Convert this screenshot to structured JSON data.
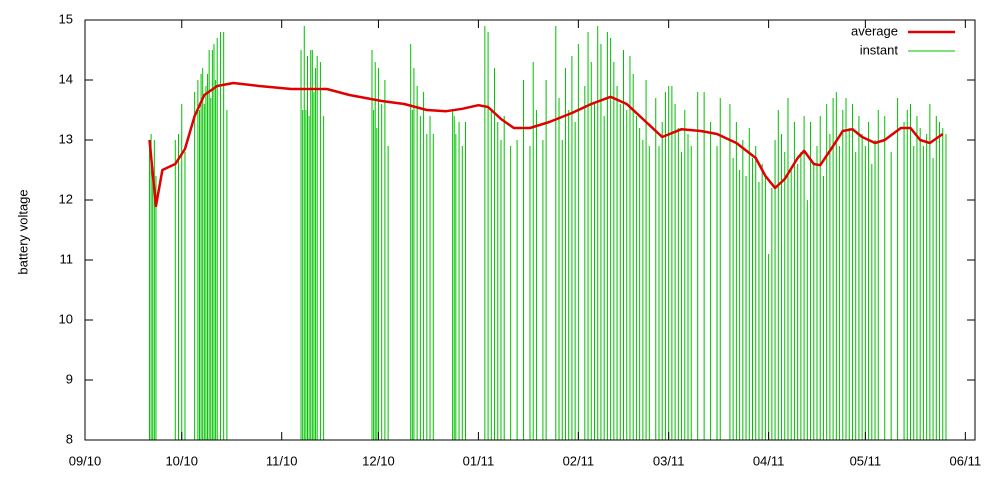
{
  "chart_data": {
    "type": "line",
    "y_label": "battery voltage",
    "xlim": [
      0,
      276
    ],
    "ylim": [
      8,
      15
    ],
    "xticks": [
      {
        "value": 0,
        "label": "09/10"
      },
      {
        "value": 30,
        "label": "10/10"
      },
      {
        "value": 61,
        "label": "11/10"
      },
      {
        "value": 91,
        "label": "12/10"
      },
      {
        "value": 122,
        "label": "01/11"
      },
      {
        "value": 153,
        "label": "02/11"
      },
      {
        "value": 181,
        "label": "03/11"
      },
      {
        "value": 212,
        "label": "04/11"
      },
      {
        "value": 242,
        "label": "05/11"
      },
      {
        "value": 273,
        "label": "06/11"
      }
    ],
    "yticks": [
      8,
      9,
      10,
      11,
      12,
      13,
      14,
      15
    ],
    "legend": "top-right",
    "series": [
      {
        "name": "average",
        "color": "#e00000",
        "style": "line",
        "x": [
          20,
          22,
          24,
          28,
          31,
          34,
          37,
          41,
          46,
          54,
          64,
          75,
          82,
          92,
          99,
          106,
          112,
          117,
          122,
          125,
          129,
          133,
          138,
          144,
          151,
          157,
          163,
          168,
          174,
          179,
          185,
          191,
          196,
          202,
          208,
          211,
          214,
          217,
          221,
          223,
          226,
          228,
          232,
          235,
          238,
          241,
          245,
          248,
          253,
          256,
          259,
          262,
          266
        ],
        "values": [
          13.0,
          11.9,
          12.5,
          12.6,
          12.85,
          13.4,
          13.75,
          13.9,
          13.95,
          13.9,
          13.85,
          13.85,
          13.75,
          13.65,
          13.6,
          13.5,
          13.48,
          13.52,
          13.58,
          13.55,
          13.35,
          13.2,
          13.2,
          13.3,
          13.45,
          13.6,
          13.72,
          13.6,
          13.3,
          13.05,
          13.18,
          13.15,
          13.1,
          12.95,
          12.7,
          12.4,
          12.2,
          12.35,
          12.7,
          12.82,
          12.6,
          12.58,
          12.9,
          13.15,
          13.18,
          13.05,
          12.95,
          13.0,
          13.2,
          13.2,
          13.0,
          12.95,
          13.1
        ]
      },
      {
        "name": "instant",
        "color": "#00c000",
        "style": "impulses",
        "x": [
          20,
          20.5,
          21,
          21.5,
          22,
          28,
          29,
          30,
          31,
          34,
          35,
          35.5,
          36,
          36.5,
          37,
          37.5,
          38,
          38.5,
          39,
          39.5,
          40,
          40.5,
          41,
          42,
          43,
          44,
          67,
          67.5,
          68,
          68.5,
          69,
          69.5,
          70,
          70.5,
          71,
          71.5,
          72,
          73,
          74,
          89,
          89.5,
          90,
          90.5,
          91,
          92,
          93,
          94,
          101,
          101.5,
          102,
          103,
          104,
          105,
          106,
          107,
          108,
          114,
          114.5,
          115,
          116,
          117,
          118,
          124,
          125,
          126,
          127,
          128,
          129,
          130,
          132,
          134,
          136,
          138,
          139,
          140,
          142,
          143,
          146,
          147,
          148,
          149,
          150,
          151,
          152,
          153,
          155,
          156,
          157,
          158,
          159,
          160,
          161,
          162,
          163,
          164,
          165,
          166,
          167,
          168,
          169,
          170,
          171,
          172,
          173,
          174,
          175,
          177,
          178,
          179,
          180,
          181,
          182,
          183,
          184,
          185,
          186,
          187,
          188,
          190,
          192,
          194,
          196,
          197,
          200,
          201,
          202,
          203,
          204,
          205,
          206,
          207,
          208,
          209,
          210,
          211,
          212,
          213,
          214,
          215,
          216,
          217,
          218,
          219,
          220,
          221,
          222,
          223,
          224,
          225,
          226,
          227,
          228,
          229,
          230,
          231,
          232,
          233,
          234,
          235,
          236,
          237,
          238,
          239,
          240,
          241,
          242,
          243,
          244,
          245,
          246,
          248,
          250,
          252,
          254,
          255,
          256,
          257,
          258,
          259,
          260,
          261,
          262,
          263,
          264,
          265,
          266,
          267
        ],
        "values": [
          13.0,
          13.1,
          12.4,
          13.0,
          12.4,
          13.0,
          13.1,
          13.6,
          12.8,
          13.8,
          14.0,
          13.5,
          14.1,
          14.2,
          13.6,
          13.9,
          14.1,
          14.5,
          13.7,
          14.5,
          14.6,
          14.0,
          14.7,
          14.8,
          14.8,
          13.5,
          14.5,
          13.5,
          14.9,
          13.5,
          14.4,
          13.4,
          14.5,
          14.5,
          13.8,
          14.2,
          14.4,
          14.3,
          13.4,
          14.5,
          13.5,
          14.3,
          13.2,
          14.2,
          13.6,
          14.0,
          12.9,
          14.6,
          13.5,
          14.2,
          13.9,
          13.4,
          13.8,
          13.1,
          13.4,
          13.1,
          13.5,
          13.4,
          13.1,
          13.3,
          12.9,
          13.3,
          14.9,
          14.8,
          13.5,
          14.2,
          13.3,
          13.0,
          13.4,
          12.9,
          13.0,
          14.0,
          12.9,
          14.3,
          13.5,
          13.0,
          14.0,
          14.9,
          13.7,
          13.0,
          14.2,
          13.5,
          14.4,
          13.3,
          14.6,
          13.9,
          14.8,
          14.3,
          13.6,
          14.9,
          14.6,
          13.4,
          14.8,
          14.7,
          14.3,
          13.9,
          13.6,
          14.5,
          13.5,
          14.4,
          14.1,
          13.4,
          13.2,
          13.0,
          14.0,
          12.9,
          13.7,
          12.9,
          13.3,
          13.8,
          13.9,
          13.9,
          13.6,
          13.2,
          12.8,
          13.5,
          13.1,
          12.9,
          13.8,
          13.8,
          13.3,
          12.9,
          13.7,
          13.6,
          12.7,
          13.3,
          12.5,
          13.0,
          12.4,
          13.2,
          12.7,
          12.9,
          12.3,
          12.6,
          12.4,
          11.1,
          12.2,
          13.0,
          13.5,
          13.1,
          12.8,
          13.7,
          12.5,
          13.3,
          12.6,
          12.8,
          13.4,
          12.0,
          13.3,
          12.6,
          12.9,
          13.4,
          12.4,
          13.6,
          13.1,
          13.7,
          13.8,
          12.9,
          13.5,
          13.7,
          13.2,
          13.6,
          12.8,
          13.4,
          13.1,
          12.9,
          13.3,
          12.6,
          13.0,
          13.5,
          13.4,
          12.8,
          13.7,
          13.3,
          13.5,
          13.6,
          12.9,
          13.4,
          13.2,
          12.9,
          13.1,
          13.6,
          12.7,
          13.4,
          13.3,
          13.2,
          13.1
        ]
      }
    ]
  }
}
